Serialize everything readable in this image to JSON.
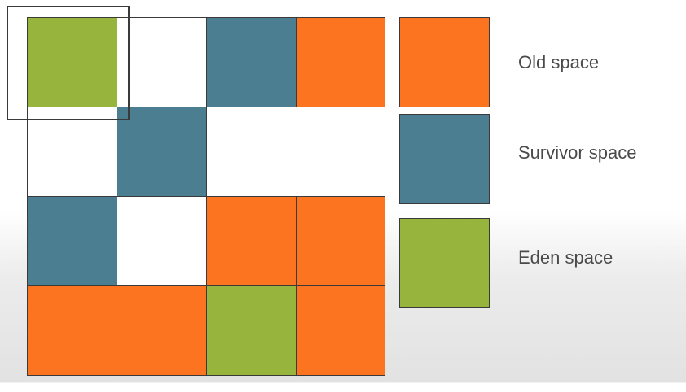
{
  "colors": {
    "old": "#fc7320",
    "survivor": "#4c7e92",
    "eden": "#97b43c",
    "empty": "#ffffff",
    "border": "#3a3a3a"
  },
  "grid": {
    "rows": 4,
    "columns": 4,
    "cells": [
      [
        "eden",
        "empty",
        "survivor",
        "old"
      ],
      [
        "empty",
        "survivor",
        "empty",
        "empty"
      ],
      [
        "survivor",
        "empty",
        "old",
        "old"
      ],
      [
        "old",
        "old",
        "eden",
        "old"
      ]
    ],
    "highlighted_cell": "row 1, column 1"
  },
  "legend": {
    "items": [
      {
        "key": "old",
        "label": "Old space"
      },
      {
        "key": "survivor",
        "label": "Survivor space"
      },
      {
        "key": "eden",
        "label": "Eden space"
      }
    ]
  }
}
